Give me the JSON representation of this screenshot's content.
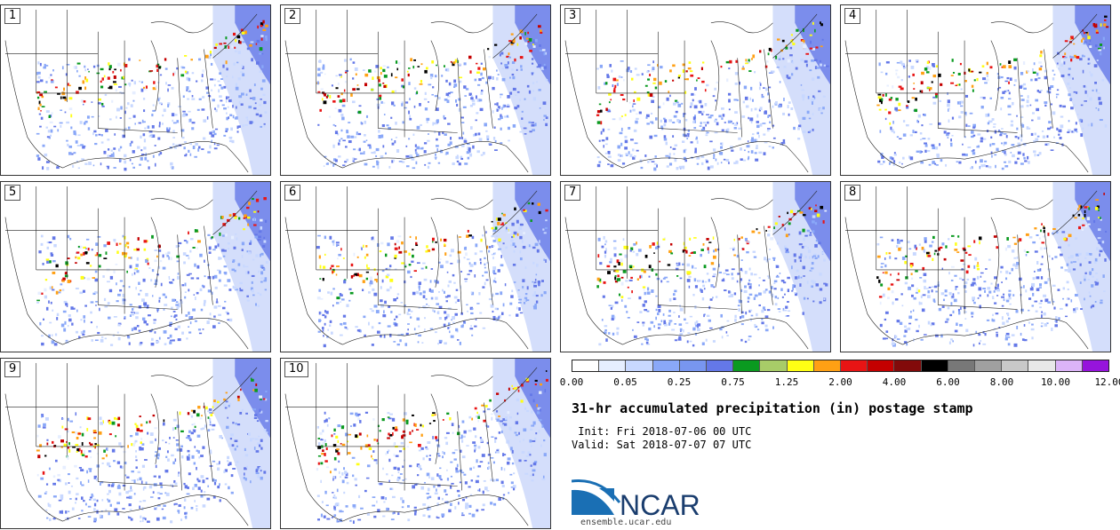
{
  "stamps": [
    {
      "label": "1"
    },
    {
      "label": "2"
    },
    {
      "label": "3"
    },
    {
      "label": "4"
    },
    {
      "label": "5"
    },
    {
      "label": "6"
    },
    {
      "label": "7"
    },
    {
      "label": "8"
    },
    {
      "label": "9"
    },
    {
      "label": "10"
    }
  ],
  "colorbar": {
    "colors": [
      "#ffffff",
      "#e6eeff",
      "#c8d8ff",
      "#8aa8f8",
      "#7896f0",
      "#6478e8",
      "#0a9a20",
      "#a8cc68",
      "#ffff14",
      "#ffa014",
      "#e81414",
      "#c40000",
      "#820a0a",
      "#000000",
      "#787878",
      "#a0a0a0",
      "#c8c8c8",
      "#e8e8e8",
      "#dcb4f8",
      "#9614dc"
    ],
    "tick_labels": [
      "0.00",
      "0.05",
      "0.25",
      "0.75",
      "1.25",
      "2.00",
      "4.00",
      "6.00",
      "8.00",
      "10.00",
      "12.00"
    ]
  },
  "title": "31-hr accumulated precipitation (in) postage stamp",
  "init": " Init: Fri 2018-07-06 00 UTC",
  "valid": "Valid: Sat 2018-07-07 07 UTC",
  "logo_text": "NCAR",
  "site": "ensemble.ucar.edu"
}
